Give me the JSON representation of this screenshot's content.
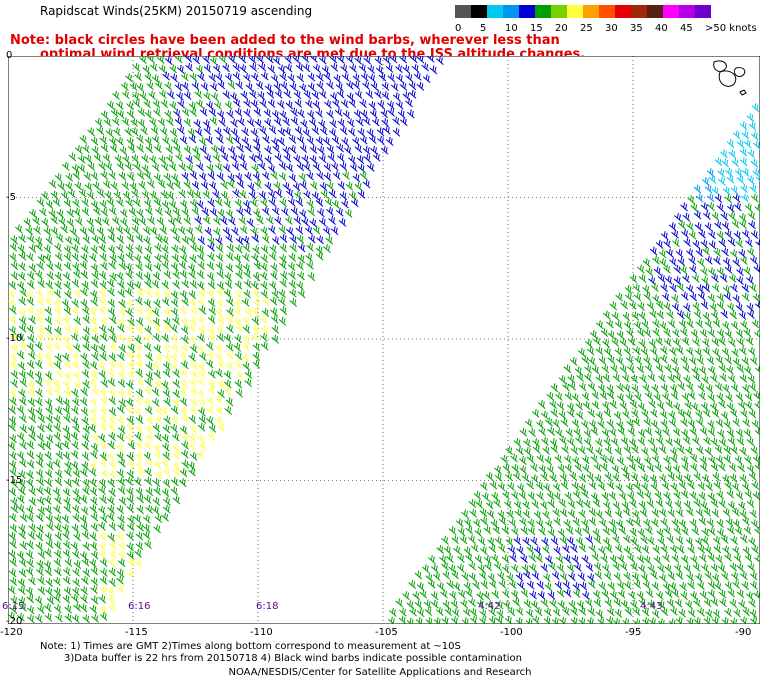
{
  "title": "Rapidscat Winds(25KM) 20150719 ascending",
  "note": {
    "line1": "Note: black circles have been added to the wind barbs, wherever less than",
    "line2": "optimal wind retrieval conditions are met due to the ISS altitude changes."
  },
  "legend": {
    "colors": [
      "#555555",
      "#000000",
      "#00c8f0",
      "#0096f0",
      "#0000d2",
      "#00a000",
      "#78d200",
      "#ffff40",
      "#ffa000",
      "#ff5000",
      "#e60000",
      "#a0280a",
      "#5a1e14",
      "#ff00ff",
      "#b400e6",
      "#6e00c8"
    ],
    "labels": [
      "0",
      "5",
      "10",
      "15",
      "20",
      "25",
      "30",
      "35",
      "40",
      "45",
      ">50 knots"
    ]
  },
  "axes": {
    "lat_labels": [
      "0",
      "-5",
      "-10",
      "-15",
      "-20"
    ],
    "lon_labels": [
      "-120",
      "-115",
      "-110",
      "-105",
      "-100",
      "-95",
      "-90"
    ]
  },
  "times": [
    "6:15",
    "6:16",
    "6:18",
    "4:42",
    "4:43"
  ],
  "footer": {
    "line1": "Note: 1) Times are GMT 2)Times along bottom correspond to measurement at ~10S",
    "line2": "3)Data buffer is 22 hrs from 20150718 4) Black wind barbs indicate possible contamination"
  },
  "credit": "NOAA/NESDIS/Center for Satellite Applications and Research"
}
